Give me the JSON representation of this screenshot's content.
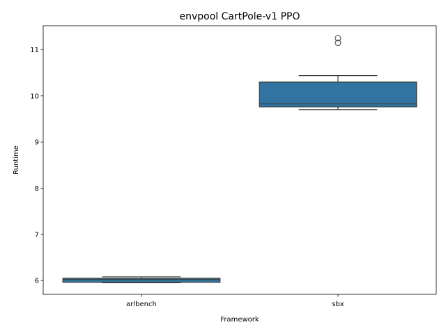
{
  "chart_data": {
    "type": "box",
    "title": "envpool CartPole-v1 PPO",
    "xlabel": "Framework",
    "ylabel": "Runtime",
    "categories": [
      "arlbench",
      "sbx"
    ],
    "ylim": [
      5.7,
      11.52
    ],
    "yticks": [
      6,
      7,
      8,
      9,
      10,
      11
    ],
    "grid": false,
    "box_color": "#3274a1",
    "line_color": "#3d3d3d",
    "boxes": [
      {
        "category": "arlbench",
        "whisker_low": 5.95,
        "q1": 5.96,
        "median": 6.02,
        "q3": 6.05,
        "whisker_high": 6.08,
        "outliers": []
      },
      {
        "category": "sbx",
        "whisker_low": 9.7,
        "q1": 9.76,
        "median": 9.83,
        "q3": 10.3,
        "whisker_high": 10.44,
        "outliers": [
          11.15,
          11.25
        ]
      }
    ]
  }
}
